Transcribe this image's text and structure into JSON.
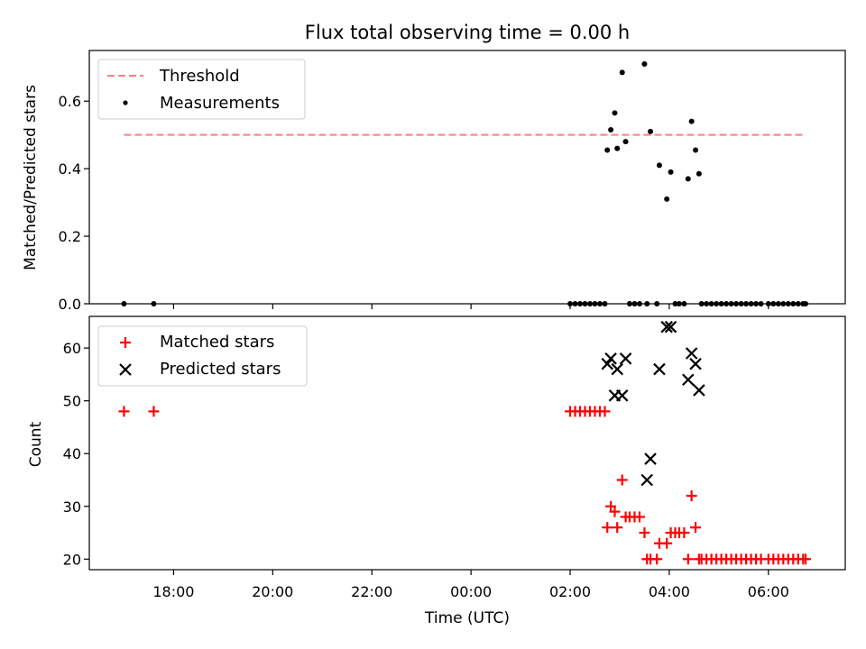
{
  "chart_data": [
    {
      "type": "scatter",
      "title": "Flux total observing time = 0.00 h",
      "ylabel": "Matched/Predicted stars",
      "xlabel": "",
      "ylim": [
        0,
        0.75
      ],
      "yticks": [
        0.0,
        0.2,
        0.4,
        0.6
      ],
      "ytick_labels": [
        "0.0",
        "0.2",
        "0.4",
        "0.6"
      ],
      "x_unit": "hours relative to 00:00 UTC",
      "xlim": [
        -7.7,
        7.55
      ],
      "xticks": [
        -6,
        -4,
        -2,
        0,
        2,
        4,
        6
      ],
      "legend_position": "top-left",
      "legend": [
        {
          "label": "Threshold",
          "style": "dashed-line",
          "color": "#ff7f7f"
        },
        {
          "label": "Measurements",
          "style": "dot",
          "color": "#000000"
        }
      ],
      "threshold": {
        "name": "Threshold",
        "y": 0.5,
        "x_range": [
          -7.0,
          6.75
        ],
        "color": "#ff7f7f"
      },
      "series": [
        {
          "name": "Measurements",
          "color": "#000000",
          "x": [
            -7.0,
            -6.4,
            2.0,
            2.1,
            2.2,
            2.3,
            2.4,
            2.5,
            2.6,
            2.7,
            2.75,
            2.82,
            2.9,
            2.95,
            3.05,
            3.12,
            3.2,
            3.3,
            3.4,
            3.5,
            3.55,
            3.62,
            3.75,
            3.8,
            3.95,
            4.03,
            4.12,
            4.2,
            4.3,
            4.38,
            4.45,
            4.53,
            4.6,
            4.65,
            4.75,
            4.85,
            4.95,
            5.05,
            5.15,
            5.25,
            5.35,
            5.45,
            5.55,
            5.65,
            5.75,
            5.85,
            6.0,
            6.1,
            6.2,
            6.3,
            6.4,
            6.5,
            6.6,
            6.7,
            6.75
          ],
          "y": [
            0.0,
            0.0,
            0.0,
            0.0,
            0.0,
            0.0,
            0.0,
            0.0,
            0.0,
            0.0,
            0.455,
            0.515,
            0.565,
            0.46,
            0.685,
            0.48,
            0.0,
            0.0,
            0.0,
            0.71,
            0.0,
            0.51,
            0.0,
            0.41,
            0.31,
            0.39,
            0.0,
            0.0,
            0.0,
            0.37,
            0.54,
            0.455,
            0.385,
            0.0,
            0.0,
            0.0,
            0.0,
            0.0,
            0.0,
            0.0,
            0.0,
            0.0,
            0.0,
            0.0,
            0.0,
            0.0,
            0.0,
            0.0,
            0.0,
            0.0,
            0.0,
            0.0,
            0.0,
            0.0,
            0.0
          ]
        }
      ]
    },
    {
      "type": "scatter",
      "title": "",
      "ylabel": "Count",
      "xlabel": "Time (UTC)",
      "ylim": [
        18,
        66
      ],
      "yticks": [
        20,
        30,
        40,
        50,
        60
      ],
      "ytick_labels": [
        "20",
        "30",
        "40",
        "50",
        "60"
      ],
      "x_unit": "hours relative to 00:00 UTC",
      "xlim": [
        -7.7,
        7.55
      ],
      "xticks": [
        -6,
        -4,
        -2,
        0,
        2,
        4,
        6
      ],
      "xtick_labels": [
        "18:00",
        "20:00",
        "22:00",
        "00:00",
        "02:00",
        "04:00",
        "06:00"
      ],
      "legend_position": "top-left",
      "legend": [
        {
          "label": "Matched stars",
          "style": "plus",
          "color": "#ff0000"
        },
        {
          "label": "Predicted stars",
          "style": "x",
          "color": "#000000"
        }
      ],
      "series": [
        {
          "name": "Matched stars",
          "color": "#ff0000",
          "marker": "plus",
          "x": [
            -7.0,
            -6.4,
            2.0,
            2.1,
            2.2,
            2.3,
            2.4,
            2.5,
            2.6,
            2.7,
            2.75,
            2.82,
            2.9,
            2.95,
            3.05,
            3.12,
            3.2,
            3.3,
            3.4,
            3.5,
            3.55,
            3.62,
            3.75,
            3.8,
            3.95,
            4.03,
            4.12,
            4.2,
            4.3,
            4.38,
            4.45,
            4.53,
            4.6,
            4.65,
            4.75,
            4.85,
            4.95,
            5.05,
            5.15,
            5.25,
            5.35,
            5.45,
            5.55,
            5.65,
            5.75,
            5.85,
            6.0,
            6.1,
            6.2,
            6.3,
            6.4,
            6.5,
            6.6,
            6.7,
            6.75
          ],
          "y": [
            48,
            48,
            48,
            48,
            48,
            48,
            48,
            48,
            48,
            48,
            26,
            30,
            29,
            26,
            35,
            28,
            28,
            28,
            28,
            25,
            20,
            20,
            20,
            23,
            23,
            25,
            25,
            25,
            25,
            20,
            32,
            26,
            20,
            20,
            20,
            20,
            20,
            20,
            20,
            20,
            20,
            20,
            20,
            20,
            20,
            20,
            20,
            20,
            20,
            20,
            20,
            20,
            20,
            20,
            20
          ]
        },
        {
          "name": "Predicted stars",
          "color": "#000000",
          "marker": "x",
          "x": [
            2.75,
            2.82,
            2.9,
            2.95,
            3.05,
            3.12,
            3.55,
            3.62,
            3.8,
            3.95,
            4.03,
            4.38,
            4.45,
            4.53,
            4.6
          ],
          "y": [
            57,
            58,
            51,
            56,
            51,
            58,
            35,
            39,
            56,
            64,
            64,
            54,
            59,
            57,
            52
          ]
        }
      ]
    }
  ]
}
